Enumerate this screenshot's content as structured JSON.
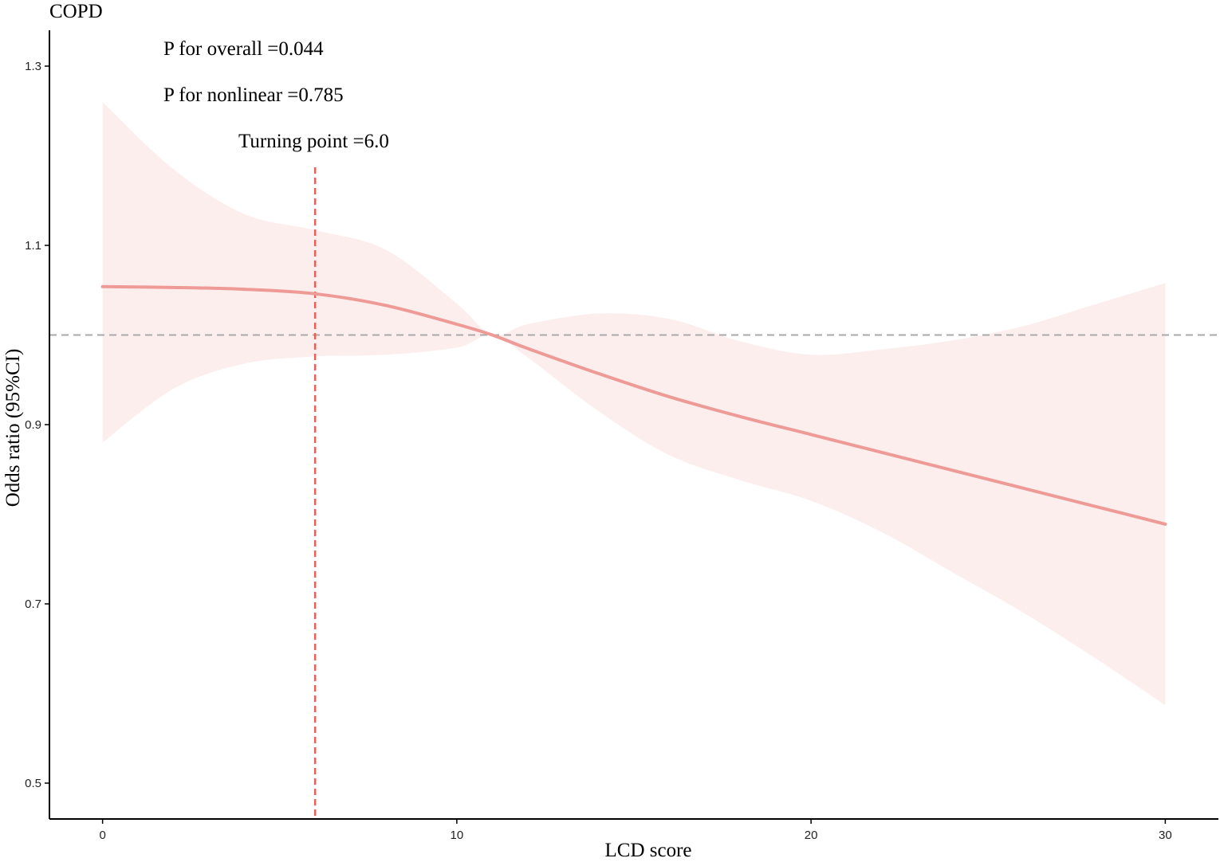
{
  "panel_label": "COPD",
  "annotations": {
    "p_overall": "P for overall =0.044",
    "p_nonlinear": "P for nonlinear =0.785",
    "turning_point": "Turning point =6.0"
  },
  "chart_data": {
    "type": "line",
    "title": "",
    "xlabel": "LCD score",
    "ylabel": "Odds ratio (95%CI)",
    "xlim": [
      -1.5,
      31.5
    ],
    "ylim": [
      0.46,
      1.34
    ],
    "xticks": [
      0,
      10,
      20,
      30
    ],
    "xtick_labels": [
      "0",
      "10",
      "20",
      "30"
    ],
    "yticks": [
      0.5,
      0.7,
      0.9,
      1.1,
      1.3
    ],
    "ytick_labels": [
      "0.5",
      "0.7",
      "0.9",
      "1.1",
      "1.3"
    ],
    "grid": false,
    "reference_line_y": 1.0,
    "turning_point_x": 6.0,
    "colors": {
      "line": "#ee9a97",
      "ci_band": "#fdeeee",
      "turning_line": "#e8605a",
      "reference_line": "#a9a9a9",
      "axis": "#000000"
    },
    "series": [
      {
        "x": [
          0,
          2,
          4,
          6,
          8,
          10,
          11,
          12,
          14,
          16,
          18,
          20,
          22,
          24,
          26,
          28,
          30
        ],
        "y": [
          1.054,
          1.053,
          1.051,
          1.046,
          1.033,
          1.012,
          1.0,
          0.985,
          0.957,
          0.931,
          0.909,
          0.889,
          0.869,
          0.849,
          0.829,
          0.809,
          0.789
        ],
        "lower": [
          0.88,
          0.94,
          0.968,
          0.976,
          0.978,
          0.986,
          1.0,
          0.975,
          0.915,
          0.866,
          0.838,
          0.815,
          0.78,
          0.735,
          0.69,
          0.64,
          0.587
        ],
        "upper": [
          1.26,
          1.185,
          1.135,
          1.117,
          1.095,
          1.035,
          1.0,
          1.012,
          1.024,
          1.018,
          0.993,
          0.978,
          0.984,
          0.994,
          1.01,
          1.034,
          1.058
        ]
      }
    ]
  }
}
